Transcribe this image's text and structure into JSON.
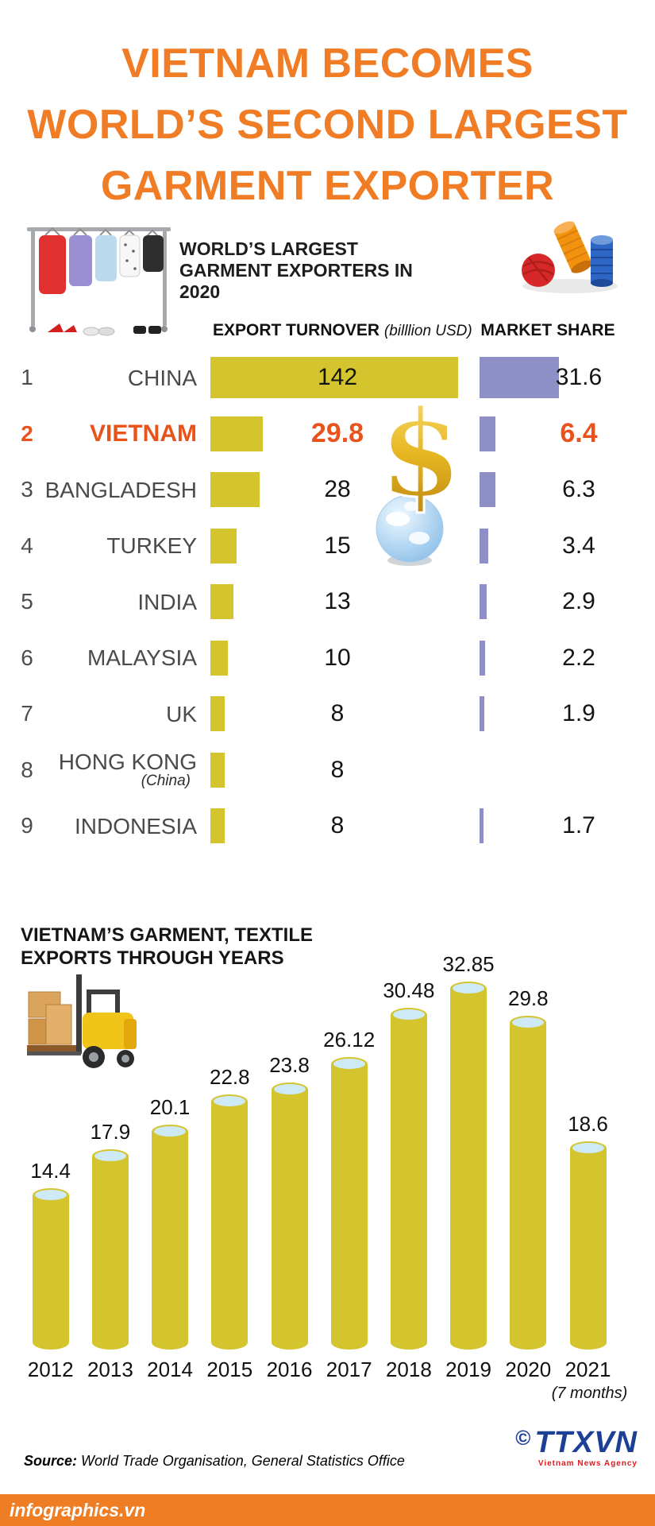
{
  "title": {
    "lines": [
      "VIETNAM BECOMES",
      "WORLD’S SECOND LARGEST",
      "GARMENT EXPORTER"
    ]
  },
  "chart_data": [
    {
      "type": "bar",
      "title": "WORLD’S LARGEST GARMENT EXPORTERS IN 2020",
      "columns": {
        "turnover": "EXPORT TURNOVER",
        "turnover_unit": "(billlion USD)",
        "share": "MARKET SHARE"
      },
      "rows": [
        {
          "rank": 1,
          "country": "CHINA",
          "note": "",
          "turnover": 142,
          "share": 31.6
        },
        {
          "rank": 2,
          "country": "VIETNAM",
          "note": "",
          "turnover": 29.8,
          "share": 6.4
        },
        {
          "rank": 3,
          "country": "BANGLADESH",
          "note": "",
          "turnover": 28,
          "share": 6.3
        },
        {
          "rank": 4,
          "country": "TURKEY",
          "note": "",
          "turnover": 15,
          "share": 3.4
        },
        {
          "rank": 5,
          "country": "INDIA",
          "note": "",
          "turnover": 13,
          "share": 2.9
        },
        {
          "rank": 6,
          "country": "MALAYSIA",
          "note": "",
          "turnover": 10,
          "share": 2.2
        },
        {
          "rank": 7,
          "country": "UK",
          "note": "",
          "turnover": 8,
          "share": 1.9
        },
        {
          "rank": 8,
          "country": "HONG KONG",
          "note": "(China)",
          "turnover": 8,
          "share": null
        },
        {
          "rank": 9,
          "country": "INDONESIA",
          "note": "",
          "turnover": 8,
          "share": 1.7
        }
      ],
      "highlight_country": "VIETNAM",
      "bar_colors": {
        "turnover": "#d4c42e",
        "share": "#8f8fc8"
      }
    },
    {
      "type": "bar",
      "title": "VIETNAM’S GARMENT, TEXTILE EXPORTS THROUGH YEARS",
      "categories": [
        "2012",
        "2013",
        "2014",
        "2015",
        "2016",
        "2017",
        "2018",
        "2019",
        "2020",
        "2021"
      ],
      "values": [
        14.4,
        17.9,
        20.1,
        22.8,
        23.8,
        26.12,
        30.48,
        32.85,
        29.8,
        18.6
      ],
      "last_category_note": "(7 months)",
      "ylim": [
        0,
        35
      ],
      "bar_color": "#d4c42e"
    }
  ],
  "footer": {
    "source_label": "Source:",
    "source_text": "World Trade Organisation, General Statistics Office",
    "site": "infographics.vn",
    "agency_copyright": "©",
    "agency_name": "TTXVN",
    "agency_subtitle": "Vietnam News Agency"
  },
  "colors": {
    "accent_orange": "#ef7d23",
    "highlight_orange_red": "#e8531b",
    "bar_yellow": "#d4c42e",
    "bar_purple": "#8f8fc8",
    "cylinder_top_blue": "#cdeaf6",
    "agency_blue": "#1c4096",
    "agency_red": "#e11a1e"
  }
}
